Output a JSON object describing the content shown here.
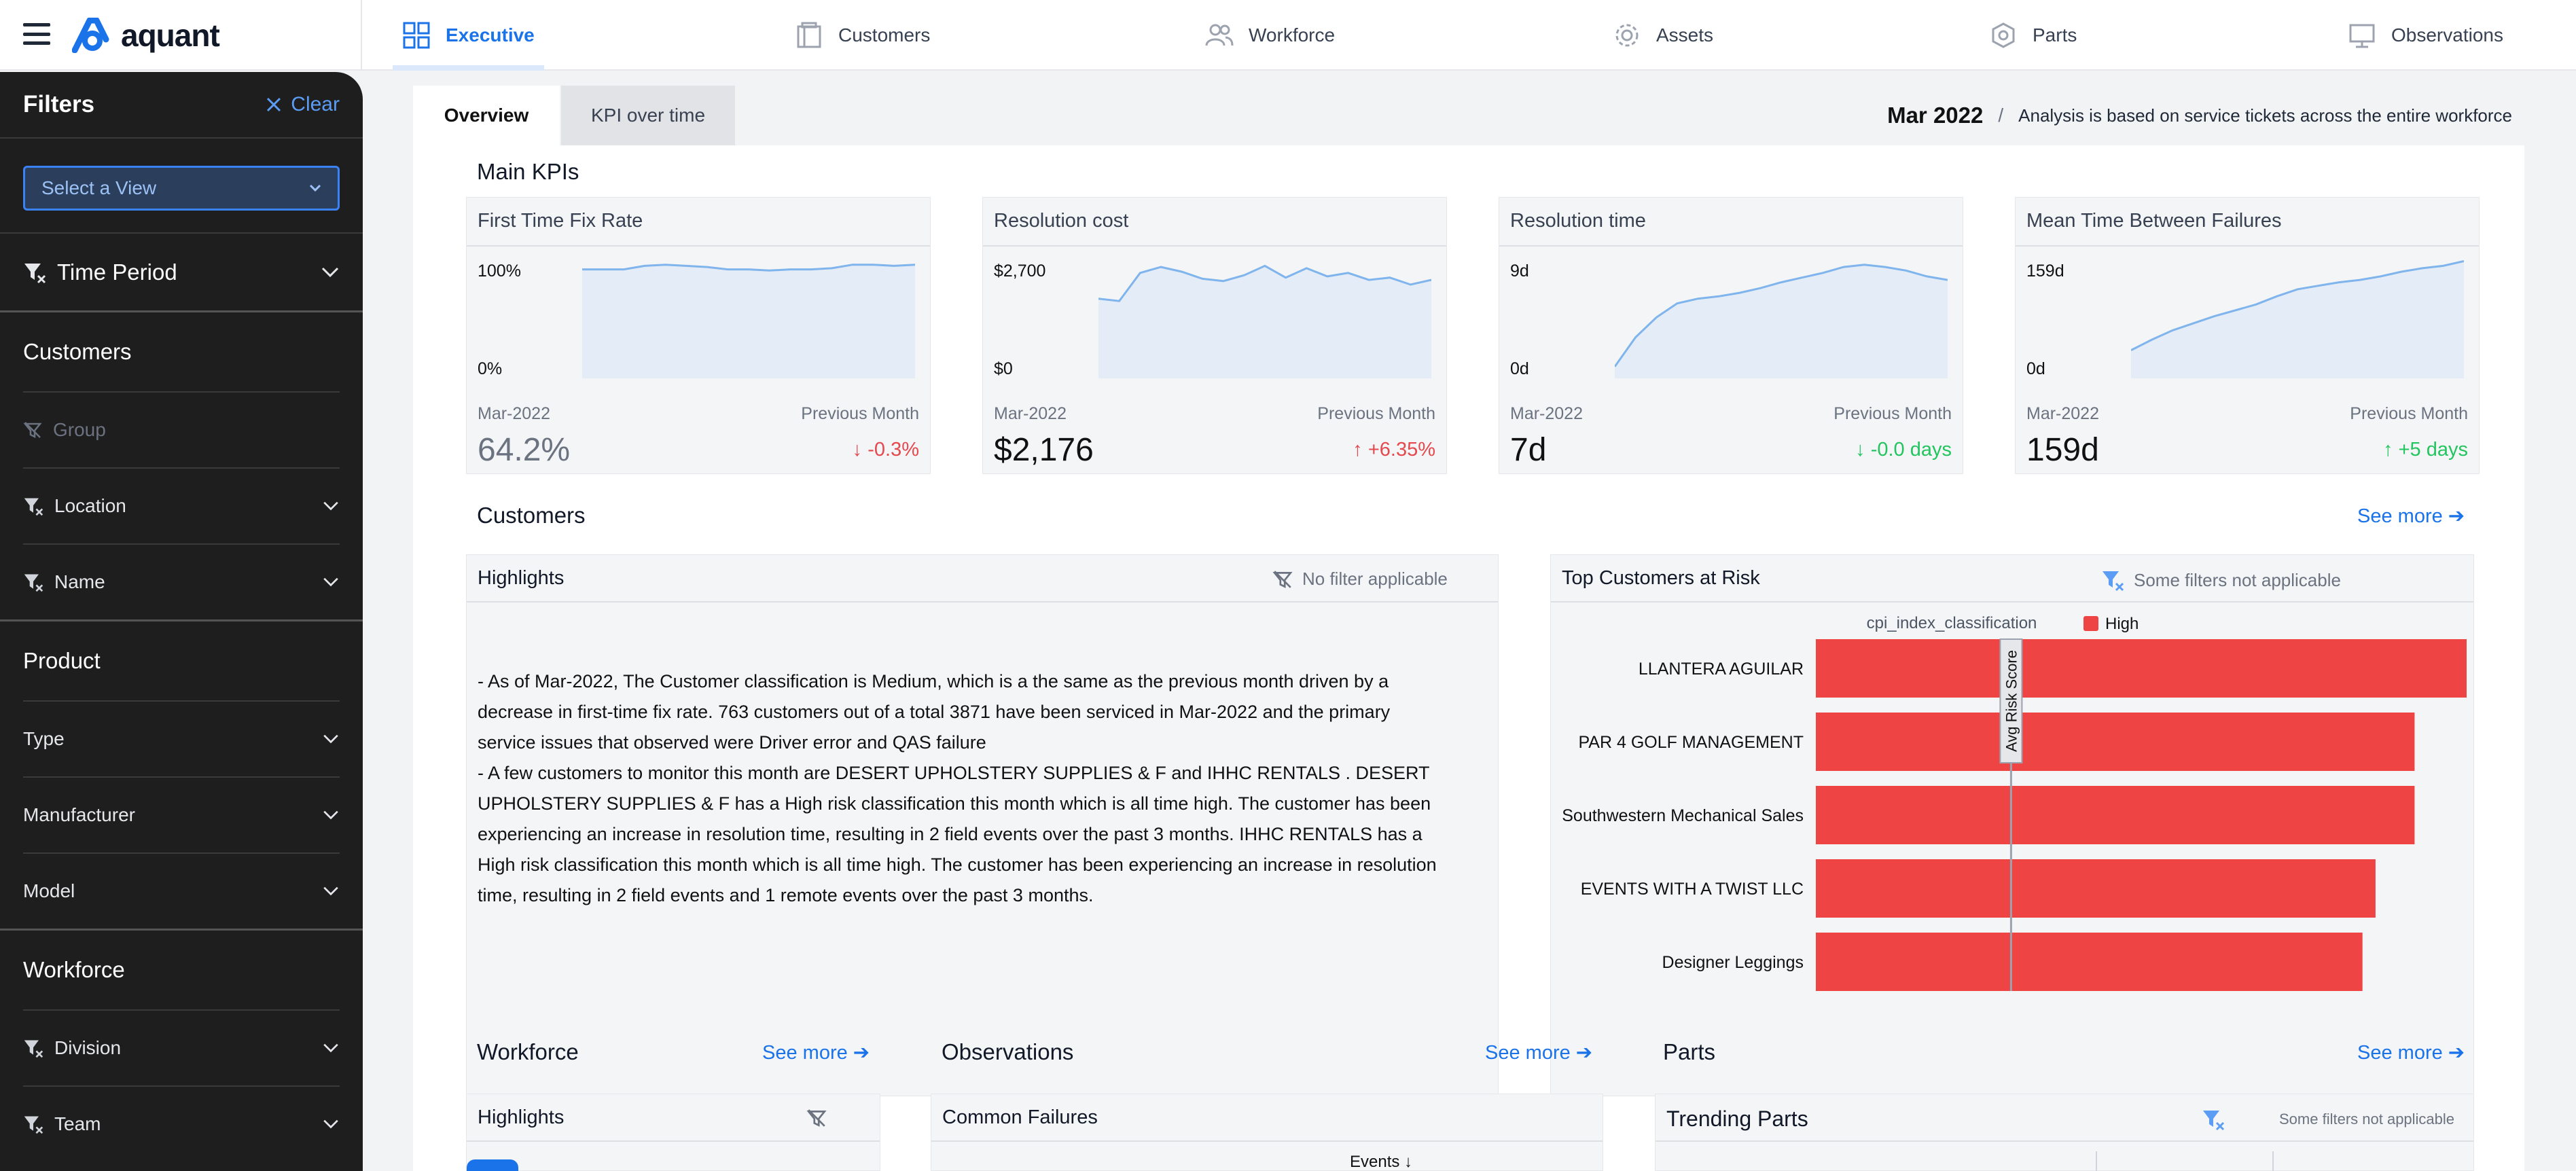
{
  "topnav": {
    "logo": "aquant",
    "tabs": [
      {
        "label": "Executive",
        "icon": "grid-icon"
      },
      {
        "label": "Customers",
        "icon": "building-icon"
      },
      {
        "label": "Workforce",
        "icon": "people-icon"
      },
      {
        "label": "Assets",
        "icon": "gear-icon"
      },
      {
        "label": "Parts",
        "icon": "part-icon"
      },
      {
        "label": "Observations",
        "icon": "monitor-icon"
      }
    ]
  },
  "sidebar": {
    "title": "Filters",
    "clear": "Clear",
    "view_placeholder": "Select a View",
    "time_period": "Time Period",
    "customers": {
      "title": "Customers",
      "items": [
        "Group",
        "Location",
        "Name"
      ]
    },
    "product": {
      "title": "Product",
      "items": [
        "Type",
        "Manufacturer",
        "Model"
      ]
    },
    "workforce": {
      "title": "Workforce",
      "items": [
        "Division",
        "Team"
      ]
    }
  },
  "page": {
    "tabs": [
      "Overview",
      "KPI over time"
    ],
    "date": "Mar 2022",
    "separator": "/",
    "note": "Analysis is based on service tickets across the entire workforce"
  },
  "main_kpis": {
    "title": "Main KPIs",
    "cards": [
      {
        "name": "First Time Fix Rate",
        "ymax": "100%",
        "ymin": "0%",
        "period": "Mar-2022",
        "prev": "Previous Month",
        "value": "64.2%",
        "delta": "↓ -0.3%",
        "delta_color": "red",
        "series": [
          0.93,
          0.93,
          0.93,
          0.96,
          0.97,
          0.96,
          0.95,
          0.93,
          0.93,
          0.92,
          0.93,
          0.93,
          0.94,
          0.97,
          0.97,
          0.96,
          0.97
        ]
      },
      {
        "name": "Resolution cost",
        "ymax": "$2,700",
        "ymin": "$0",
        "period": "Mar-2022",
        "prev": "Previous Month",
        "value": "$2,176",
        "delta": "↑ +6.35%",
        "delta_color": "red",
        "series": [
          0.68,
          0.66,
          0.9,
          0.95,
          0.91,
          0.85,
          0.83,
          0.88,
          0.96,
          0.86,
          0.94,
          0.87,
          0.9,
          0.84,
          0.86,
          0.8,
          0.84
        ]
      },
      {
        "name": "Resolution time",
        "ymax": "9d",
        "ymin": "0d",
        "period": "Mar-2022",
        "prev": "Previous Month",
        "value": "7d",
        "delta": "↓ -0.0 days",
        "delta_color": "green",
        "series": [
          0.1,
          0.35,
          0.52,
          0.64,
          0.68,
          0.7,
          0.73,
          0.77,
          0.82,
          0.86,
          0.9,
          0.95,
          0.97,
          0.95,
          0.92,
          0.87,
          0.84
        ]
      },
      {
        "name": "Mean Time Between Failures",
        "ymax": "159d",
        "ymin": "0d",
        "period": "Mar-2022",
        "prev": "Previous Month",
        "value": "159d",
        "delta": "↑ +5 days",
        "delta_color": "green",
        "series": [
          0.24,
          0.33,
          0.41,
          0.47,
          0.53,
          0.58,
          0.63,
          0.7,
          0.76,
          0.79,
          0.82,
          0.84,
          0.87,
          0.91,
          0.94,
          0.96,
          1.0
        ]
      }
    ]
  },
  "customers": {
    "title": "Customers",
    "see_more": "See more ➔",
    "highlights": {
      "title": "Highlights",
      "note": "No filter applicable",
      "lines": [
        "- As of Mar-2022, The Customer classification is Medium, which is a the same as the previous month driven by a",
        "decrease in first-time fix rate. 763 customers out of a total 3871 have been serviced in Mar-2022 and the primary",
        "service issues that observed were Driver error and QAS failure",
        "- A few customers to monitor this month are DESERT UPHOLSTERY SUPPLIES & F and IHHC RENTALS . DESERT",
        "UPHOLSTERY SUPPLIES & F has a High risk classification this month  which is all time high. The customer has been",
        "experiencing an increase in resolution time, resulting in 2 field events over the past 3 months. IHHC RENTALS has a",
        "High risk classification this month  which is all time high. The customer has been experiencing an increase in resolution",
        "time, resulting in 2 field events and 1 remote events over the past 3 months."
      ]
    },
    "top_at_risk": {
      "title": "Top Customers at Risk",
      "note": "Some filters not applicable"
    }
  },
  "chart_data": {
    "type": "bar",
    "orientation": "horizontal",
    "title": "Top Customers at Risk",
    "legend_title": "cpi_index_classification",
    "series": [
      {
        "name": "High",
        "color": "#ef4444",
        "values": [
          1.0,
          0.92,
          0.92,
          0.86,
          0.84
        ]
      }
    ],
    "categories": [
      "LLANTERA AGUILAR",
      "PAR 4 GOLF MANAGEMENT",
      "Southwestern Mechanical Sales",
      "EVENTS WITH A TWIST LLC",
      "Designer Leggings"
    ],
    "reference_line": {
      "label": "Avg Risk Score",
      "value": 0.3
    }
  },
  "workforce": {
    "title": "Workforce",
    "see_more": "See more ➔",
    "highlights": "Highlights"
  },
  "observations": {
    "title": "Observations",
    "see_more": "See more ➔",
    "common_failures": "Common Failures",
    "events_col": "Events ↓"
  },
  "parts": {
    "title": "Parts",
    "see_more": "See more ➔",
    "trending": "Trending Parts",
    "note": "Some filters not applicable"
  },
  "colors": {
    "accent": "#1a73e8",
    "risk_high": "#ef4444",
    "spark": "#7fb4ec",
    "spark_fill": "#e3ecf7"
  }
}
